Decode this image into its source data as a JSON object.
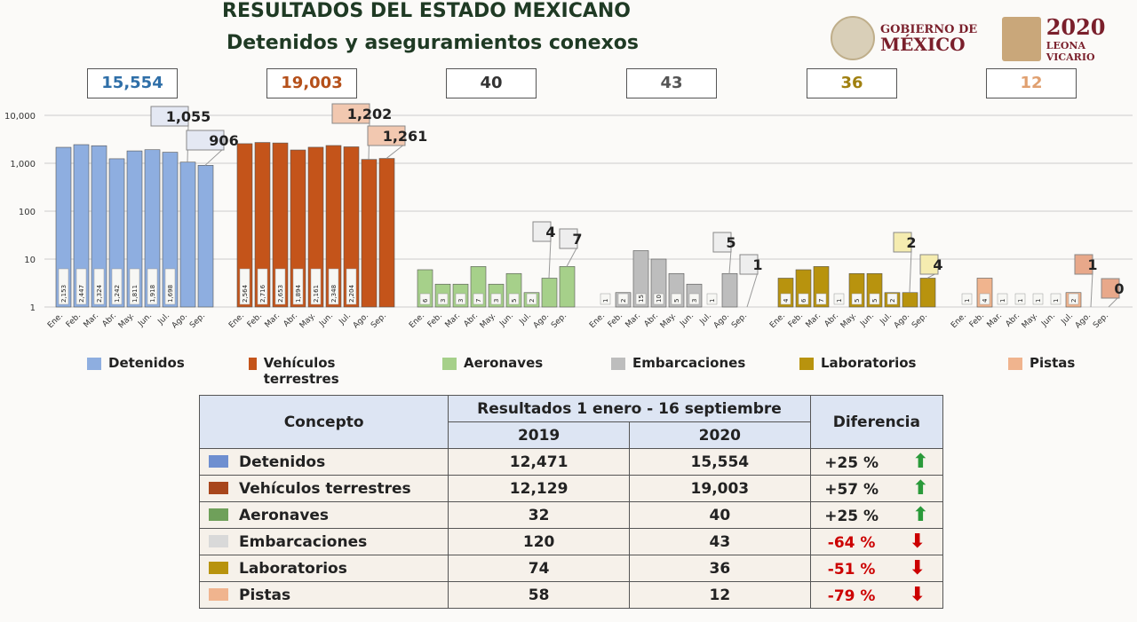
{
  "header": {
    "title": "RESULTADOS DEL ESTADO MEXICANO",
    "subtitle": "Detenidos y aseguramientos conexos",
    "gov_line1": "GOBIERNO DE",
    "gov_line2": "MÉXICO",
    "year": "2020",
    "year_sub": "LEONA VICARIO"
  },
  "totals": [
    "15,554",
    "19,003",
    "40",
    "43",
    "36",
    "12"
  ],
  "chart_data": {
    "type": "bar",
    "yscale": "log",
    "ylim": [
      1,
      10000
    ],
    "yticks": [
      "1",
      "10",
      "100",
      "1,000",
      "10,000"
    ],
    "categories": [
      "Ene.",
      "Feb.",
      "Mar.",
      "Abr.",
      "May.",
      "Jun.",
      "Jul.",
      "Ago.",
      "Sep."
    ],
    "series": [
      {
        "name": "Detenidos",
        "color": "#8eaee0",
        "values": [
          2153,
          2447,
          2324,
          1242,
          1811,
          1918,
          1698,
          1055,
          906
        ],
        "labels": [
          "2,153",
          "2,447",
          "2,324",
          "1,242",
          "1,811",
          "1,918",
          "1,698",
          "1,055",
          "906"
        ]
      },
      {
        "name": "Vehículos terrestres",
        "color": "#c4541a",
        "values": [
          2564,
          2716,
          2653,
          1894,
          2161,
          2348,
          2204,
          1202,
          1261
        ],
        "labels": [
          "2,564",
          "2,716",
          "2,653",
          "1,894",
          "2,161",
          "2,348",
          "2,204",
          "1,202",
          "1,261"
        ]
      },
      {
        "name": "Aeronaves",
        "color": "#a6d08a",
        "values": [
          6,
          3,
          3,
          7,
          3,
          5,
          2,
          4,
          7
        ],
        "labels": [
          "6",
          "3",
          "3",
          "7",
          "3",
          "5",
          "2",
          "4",
          "7"
        ]
      },
      {
        "name": "Embarcaciones",
        "color": "#bdbdbd",
        "values": [
          1,
          2,
          15,
          10,
          5,
          3,
          1,
          5,
          1
        ],
        "labels": [
          "1",
          "2",
          "15",
          "10",
          "5",
          "3",
          "1",
          "5",
          "1"
        ]
      },
      {
        "name": "Laboratorios",
        "color": "#b8930e",
        "values": [
          4,
          6,
          7,
          1,
          5,
          5,
          2,
          2,
          4
        ],
        "labels": [
          "4",
          "6",
          "7",
          "1",
          "5",
          "5",
          "2",
          "2",
          "4"
        ]
      },
      {
        "name": "Pistas",
        "color": "#f0b48e",
        "values": [
          1,
          4,
          1,
          1,
          1,
          1,
          2,
          1,
          0
        ],
        "labels": [
          "1",
          "4",
          "1",
          "1",
          "1",
          "1",
          "2",
          "1",
          "0"
        ]
      }
    ]
  },
  "legend": [
    "Detenidos",
    "Vehículos terrestres",
    "Aeronaves",
    "Embarcaciones",
    "Laboratorios",
    "Pistas"
  ],
  "table": {
    "h_concepto": "Concepto",
    "h_resultados": "Resultados 1 enero - 16 septiembre",
    "h_2019": "2019",
    "h_2020": "2020",
    "h_diff": "Diferencia",
    "rows": [
      {
        "c": "Detenidos",
        "a": "12,471",
        "b": "15,554",
        "d": "+25 %",
        "up": true,
        "color": "#6f8fd0"
      },
      {
        "c": "Vehículos terrestres",
        "a": "12,129",
        "b": "19,003",
        "d": "+57 %",
        "up": true,
        "color": "#a8461c"
      },
      {
        "c": "Aeronaves",
        "a": "32",
        "b": "40",
        "d": "+25 %",
        "up": true,
        "color": "#6fa05a"
      },
      {
        "c": "Embarcaciones",
        "a": "120",
        "b": "43",
        "d": "-64 %",
        "up": false,
        "color": "#d9d9d9"
      },
      {
        "c": "Laboratorios",
        "a": "74",
        "b": "36",
        "d": "-51 %",
        "up": false,
        "color": "#b8930e"
      },
      {
        "c": "Pistas",
        "a": "58",
        "b": "12",
        "d": "-79 %",
        "up": false,
        "color": "#f0b48e"
      }
    ]
  }
}
